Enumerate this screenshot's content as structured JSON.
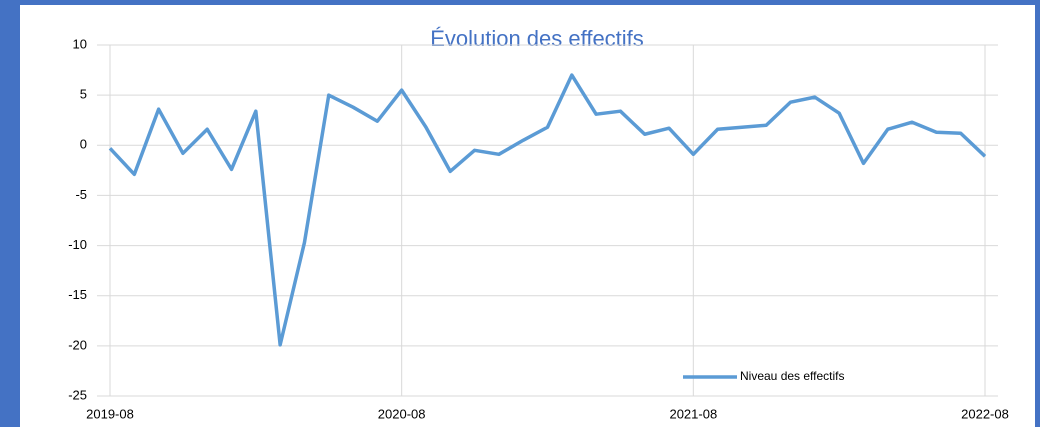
{
  "chart_data": {
    "type": "line",
    "title": "Évolution des effectifs",
    "x": [
      "2019-08",
      "2019-09",
      "2019-10",
      "2019-11",
      "2019-12",
      "2020-01",
      "2020-02",
      "2020-03",
      "2020-04",
      "2020-05",
      "2020-06",
      "2020-07",
      "2020-08",
      "2020-09",
      "2020-10",
      "2020-11",
      "2020-12",
      "2021-01",
      "2021-02",
      "2021-03",
      "2021-04",
      "2021-05",
      "2021-06",
      "2021-07",
      "2021-08",
      "2021-09",
      "2021-10",
      "2021-11",
      "2021-12",
      "2022-01",
      "2022-02",
      "2022-03",
      "2022-04",
      "2022-05",
      "2022-06",
      "2022-07",
      "2022-08"
    ],
    "series": [
      {
        "name": "Niveau des effectifs",
        "color": "#5b9bd5",
        "values": [
          -0.3,
          -2.9,
          3.6,
          -0.8,
          1.6,
          -2.4,
          3.4,
          -19.9,
          -9.7,
          5.0,
          3.8,
          2.4,
          5.5,
          1.8,
          -2.6,
          -0.5,
          -0.9,
          0.5,
          1.8,
          7.0,
          3.1,
          3.4,
          1.1,
          1.7,
          -0.9,
          1.6,
          1.8,
          2.0,
          4.3,
          4.8,
          3.2,
          -1.8,
          1.6,
          2.3,
          1.3,
          1.2,
          -1.1
        ]
      }
    ],
    "ylim": [
      -25,
      10
    ],
    "yticks": [
      -25,
      -20,
      -15,
      -10,
      -5,
      0,
      5,
      10
    ],
    "xticks": [
      "2019-08",
      "2020-08",
      "2021-08",
      "2022-08"
    ],
    "grid": true
  }
}
